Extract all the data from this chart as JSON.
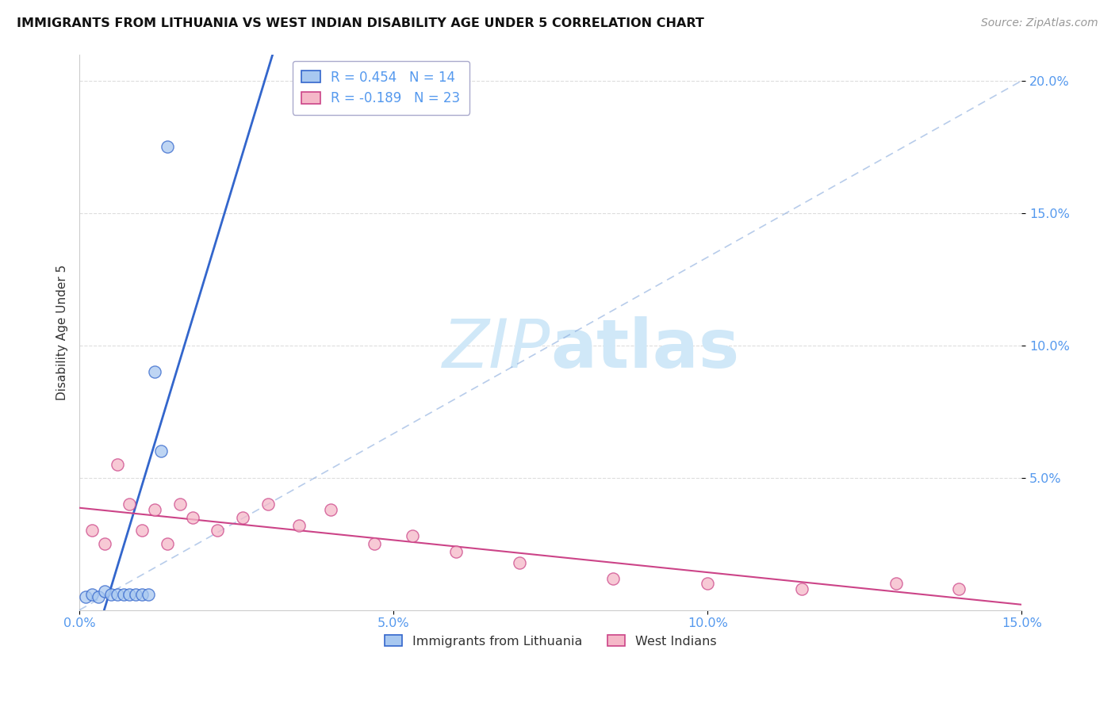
{
  "title": "IMMIGRANTS FROM LITHUANIA VS WEST INDIAN DISABILITY AGE UNDER 5 CORRELATION CHART",
  "source": "Source: ZipAtlas.com",
  "ylabel": "Disability Age Under 5",
  "xlim": [
    0.0,
    0.15
  ],
  "ylim": [
    0.0,
    0.21
  ],
  "xticks": [
    0.0,
    0.05,
    0.1,
    0.15
  ],
  "yticks": [
    0.05,
    0.1,
    0.15,
    0.2
  ],
  "xtick_labels": [
    "0.0%",
    "5.0%",
    "10.0%",
    "15.0%"
  ],
  "ytick_labels_right": [
    "5.0%",
    "10.0%",
    "15.0%",
    "20.0%"
  ],
  "legend_entries": [
    "Immigrants from Lithuania",
    "West Indians"
  ],
  "r_lithuania": 0.454,
  "n_lithuania": 14,
  "r_west_indian": -0.189,
  "n_west_indian": 23,
  "color_lithuania": "#a8c8f0",
  "color_west_indian": "#f5b8c8",
  "color_lithuania_line": "#3366cc",
  "color_west_indian_line": "#cc4488",
  "color_tick": "#5599ee",
  "watermark_color": "#d0e8f8",
  "lithuania_x": [
    0.001,
    0.002,
    0.003,
    0.004,
    0.005,
    0.006,
    0.007,
    0.008,
    0.009,
    0.01,
    0.011,
    0.012,
    0.013,
    0.014
  ],
  "lithuania_y": [
    0.005,
    0.006,
    0.005,
    0.007,
    0.006,
    0.006,
    0.006,
    0.006,
    0.006,
    0.006,
    0.006,
    0.09,
    0.06,
    0.175
  ],
  "west_indian_x": [
    0.002,
    0.004,
    0.006,
    0.008,
    0.01,
    0.012,
    0.014,
    0.016,
    0.018,
    0.022,
    0.026,
    0.03,
    0.035,
    0.04,
    0.047,
    0.053,
    0.06,
    0.07,
    0.085,
    0.1,
    0.115,
    0.13,
    0.14
  ],
  "west_indian_y": [
    0.03,
    0.025,
    0.055,
    0.04,
    0.03,
    0.038,
    0.025,
    0.04,
    0.035,
    0.03,
    0.035,
    0.04,
    0.032,
    0.038,
    0.025,
    0.028,
    0.022,
    0.018,
    0.012,
    0.01,
    0.008,
    0.01,
    0.008
  ],
  "grid_color": "#dddddd",
  "spine_color": "#cccccc"
}
